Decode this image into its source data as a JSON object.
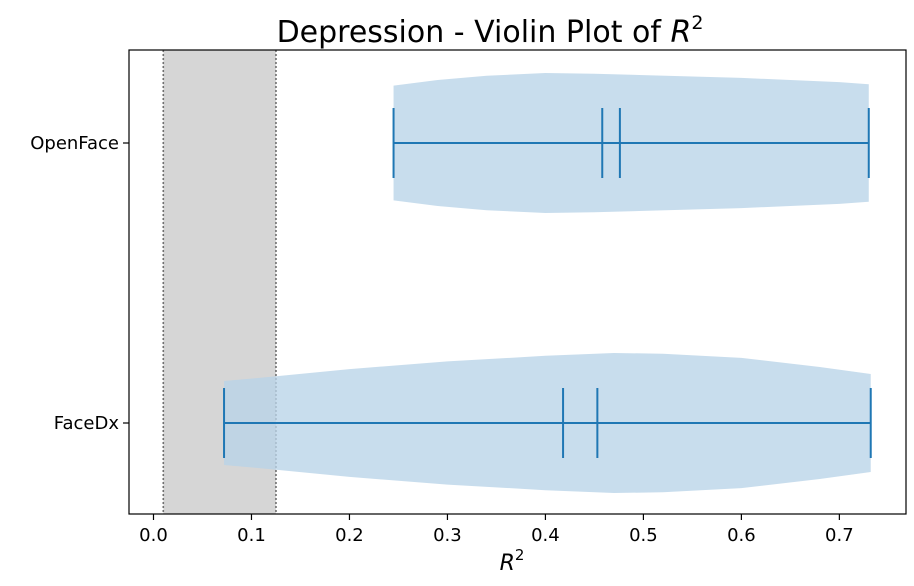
{
  "chart_data": {
    "type": "violin",
    "orientation": "horizontal",
    "title_prefix": "Depression - Violin Plot of ",
    "title_var": "R",
    "title_sup": "2",
    "xlabel_var": "R",
    "xlabel_sup": "2",
    "ylabel": "",
    "xlim": [
      -0.025,
      0.768
    ],
    "xticks": [
      0.0,
      0.1,
      0.2,
      0.3,
      0.4,
      0.5,
      0.6,
      0.7
    ],
    "xtick_labels": [
      "0.0",
      "0.1",
      "0.2",
      "0.3",
      "0.4",
      "0.5",
      "0.6",
      "0.7"
    ],
    "categories": [
      "OpenFace",
      "FaceDx"
    ],
    "grid": false,
    "shaded_region": {
      "x_start": 0.01,
      "x_end": 0.125,
      "color": "#d6d6d6"
    },
    "violin_fill_color": "#b9d4e8",
    "line_color": "#1f77b4",
    "series": [
      {
        "name": "OpenFace",
        "min": 0.245,
        "max": 0.73,
        "median": 0.458,
        "mean": 0.476,
        "density": [
          [
            0.245,
            0.82
          ],
          [
            0.29,
            0.9
          ],
          [
            0.34,
            0.96
          ],
          [
            0.4,
            1.0
          ],
          [
            0.45,
            0.99
          ],
          [
            0.5,
            0.97
          ],
          [
            0.55,
            0.95
          ],
          [
            0.6,
            0.93
          ],
          [
            0.65,
            0.9
          ],
          [
            0.7,
            0.87
          ],
          [
            0.73,
            0.84
          ]
        ]
      },
      {
        "name": "FaceDx",
        "min": 0.072,
        "max": 0.732,
        "median": 0.418,
        "mean": 0.453,
        "density": [
          [
            0.072,
            0.6
          ],
          [
            0.12,
            0.66
          ],
          [
            0.2,
            0.77
          ],
          [
            0.3,
            0.88
          ],
          [
            0.4,
            0.96
          ],
          [
            0.47,
            1.0
          ],
          [
            0.52,
            0.99
          ],
          [
            0.6,
            0.93
          ],
          [
            0.68,
            0.8
          ],
          [
            0.732,
            0.7
          ]
        ]
      }
    ]
  }
}
